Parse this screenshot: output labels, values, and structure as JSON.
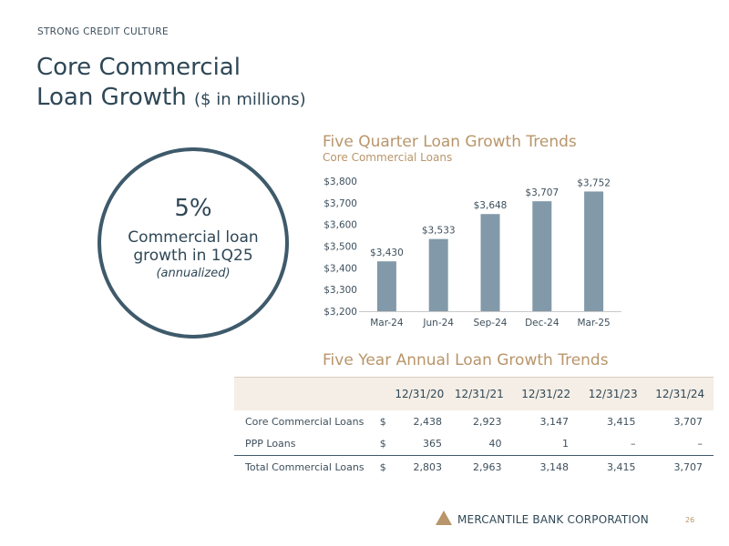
{
  "header": {
    "eyebrow": "STRONG CREDIT CULTURE",
    "title_line1": "Core Commercial",
    "title_line2": "Loan Growth",
    "title_units": "($ in millions)"
  },
  "callout": {
    "percent": "5%",
    "line1": "Commercial loan",
    "line2": "growth in 1Q25",
    "note": "(annualized)"
  },
  "chart_section": {
    "title": "Five Quarter Loan Growth Trends",
    "subtitle": "Core Commercial Loans"
  },
  "chart_data": {
    "type": "bar",
    "title": "Five Quarter Loan Growth Trends",
    "subtitle": "Core Commercial Loans",
    "categories": [
      "Mar-24",
      "Jun-24",
      "Sep-24",
      "Dec-24",
      "Mar-25"
    ],
    "values": [
      3430,
      3533,
      3648,
      3707,
      3752
    ],
    "value_labels": [
      "$3,430",
      "$3,533",
      "$3,648",
      "$3,707",
      "$3,752"
    ],
    "yticks": [
      3200,
      3300,
      3400,
      3500,
      3600,
      3700,
      3800
    ],
    "ytick_labels": [
      "$3,200",
      "$3,300",
      "$3,400",
      "$3,500",
      "$3,600",
      "$3,700",
      "$3,800"
    ],
    "ylim": [
      3200,
      3800
    ],
    "grid": false,
    "bar_color": "#8299a9"
  },
  "table_section": {
    "title": "Five Year Annual Loan Growth Trends",
    "headers": [
      "12/31/20",
      "12/31/21",
      "12/31/22",
      "12/31/23",
      "12/31/24"
    ],
    "rows": [
      {
        "label": "Core Commercial Loans",
        "dollar": "$",
        "values": [
          "2,438",
          "2,923",
          "3,147",
          "3,415",
          "3,707"
        ]
      },
      {
        "label": "PPP Loans",
        "dollar": "$",
        "values": [
          "365",
          "40",
          "1",
          "–",
          "–"
        ]
      },
      {
        "label": "Total Commercial Loans",
        "dollar": "$",
        "values": [
          "2,803",
          "2,963",
          "3,148",
          "3,415",
          "3,707"
        ]
      }
    ]
  },
  "footer": {
    "company": "MERCANTILE BANK CORPORATION",
    "page_number": "26",
    "logo_icon": "triangle-logo-icon"
  },
  "colors": {
    "accent_gold": "#b8956a",
    "navy": "#2f4756",
    "bar": "#8299a9",
    "table_header_bg": "#f4eee6"
  }
}
